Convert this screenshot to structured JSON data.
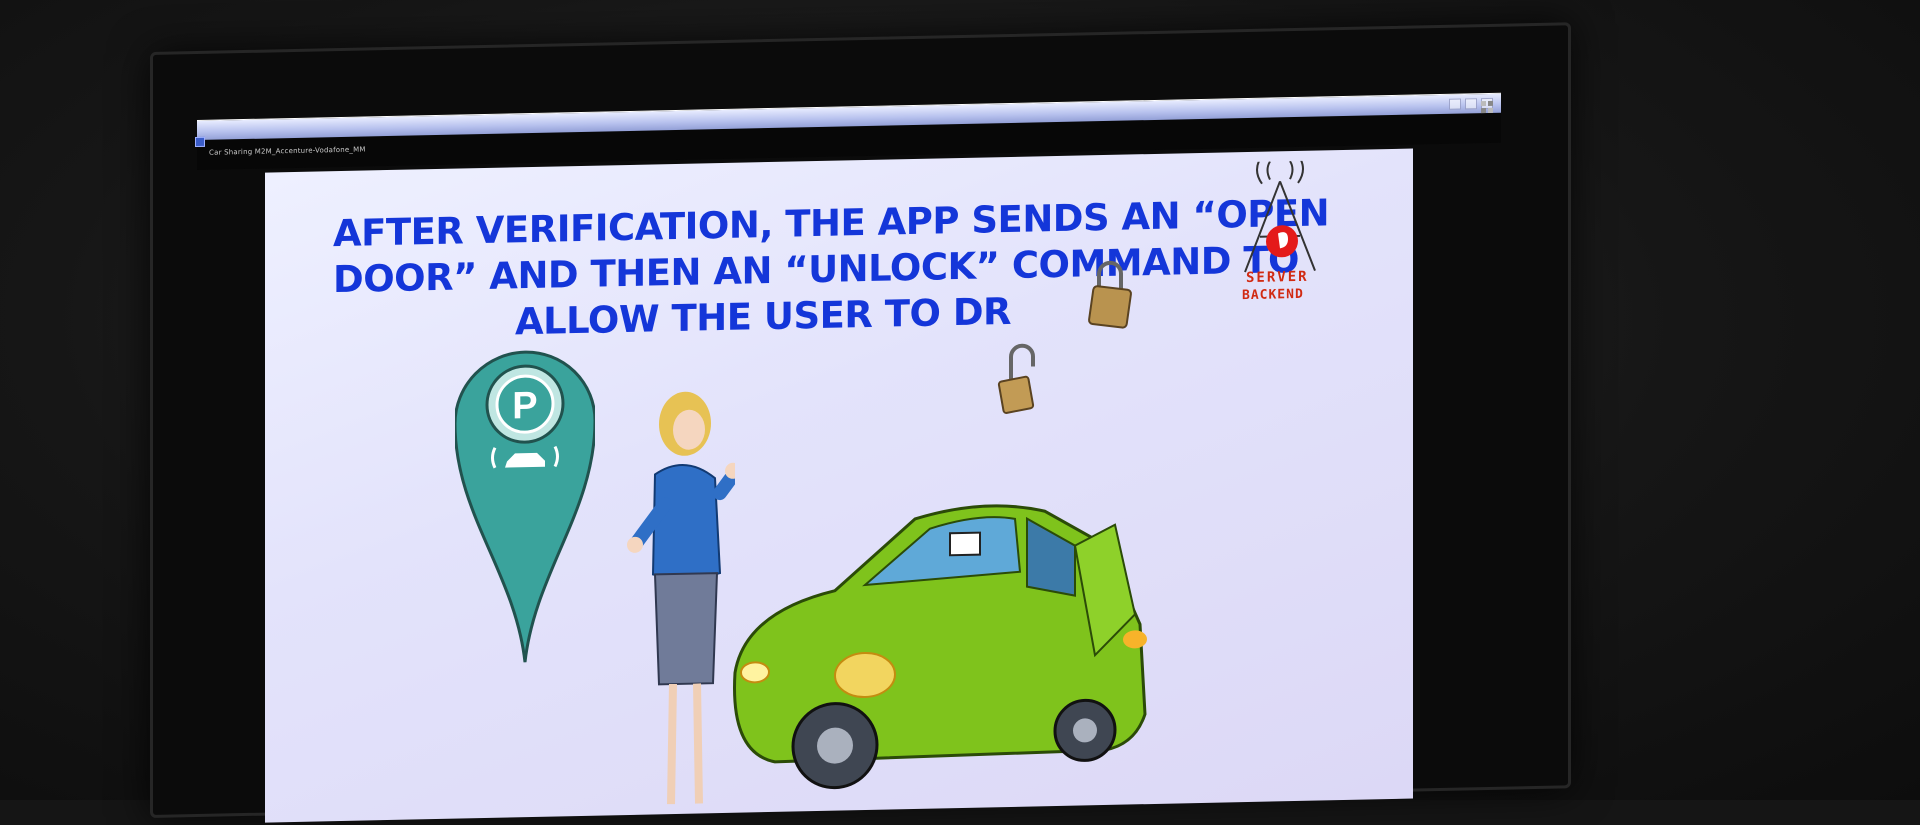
{
  "window": {
    "title": "Car Sharing M2M_Accenture-Vodafone_MM"
  },
  "slide": {
    "title_lines": [
      "AFTER VERIFICATION, THE APP SENDS AN “OPEN",
      "DOOR” AND THEN AN “UNLOCK” COMMAND TO",
      "ALLOW THE USER TO DR"
    ],
    "server_label_1": "SERVER",
    "server_label_2": "BACKEND",
    "parking_letter": "P"
  },
  "colors": {
    "title_blue": "#1436d9",
    "server_red": "#d12a12",
    "car_green": "#7fc31c",
    "pin_teal": "#3aa39c"
  },
  "icons": [
    "app-icon",
    "window-control-icon",
    "antenna-icon",
    "vodafone-logo-icon",
    "padlock-icon",
    "parking-pin-icon",
    "car-icon"
  ]
}
